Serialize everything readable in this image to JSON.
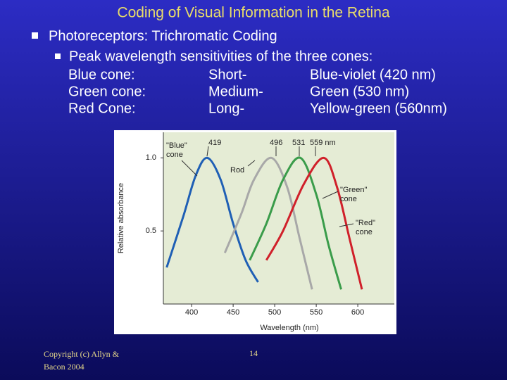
{
  "title": "Coding of Visual Information in the Retina",
  "bullets": [
    "Photoreceptors: Trichromatic Coding",
    "Peak wavelength sensitivities of the three cones:"
  ],
  "cones": {
    "rows": [
      [
        "Blue cone:",
        "Short-",
        "Blue-violet (420 nm)"
      ],
      [
        "Green cone:",
        "Medium-",
        "Green (530 nm)"
      ],
      [
        "Red Cone:",
        "Long-",
        "Yellow-green (560nm)"
      ]
    ]
  },
  "chart_data": {
    "type": "line",
    "xlabel": "Wavelength (nm)",
    "ylabel": "Relative absorbance",
    "xlim": [
      366,
      644
    ],
    "ylim": [
      0,
      1.175
    ],
    "xticks": [
      400,
      450,
      500,
      550,
      600
    ],
    "yticks": [
      {
        "value": 1,
        "label": "1.0"
      },
      0.5
    ],
    "series": [
      {
        "name": "Blue cone",
        "color": "#1f5fb5",
        "x": [
          370,
          390,
          405,
          419,
          435,
          450,
          465,
          480
        ],
        "values": [
          0.25,
          0.6,
          0.88,
          1.0,
          0.85,
          0.55,
          0.3,
          0.15
        ]
      },
      {
        "name": "Rod",
        "color": "#a8a8a8",
        "x": [
          440,
          460,
          475,
          496,
          515,
          530,
          545
        ],
        "values": [
          0.35,
          0.62,
          0.85,
          1.0,
          0.8,
          0.45,
          0.1
        ]
      },
      {
        "name": "Green cone",
        "color": "#3a9c4a",
        "x": [
          470,
          490,
          510,
          531,
          550,
          565,
          580
        ],
        "values": [
          0.3,
          0.55,
          0.85,
          1.0,
          0.75,
          0.4,
          0.1
        ]
      },
      {
        "name": "Red cone",
        "color": "#d0202a",
        "x": [
          490,
          510,
          535,
          559,
          575,
          590,
          605
        ],
        "values": [
          0.3,
          0.5,
          0.82,
          1.0,
          0.8,
          0.45,
          0.1
        ]
      }
    ],
    "annotations": [
      {
        "lines": [
          "\"Blue\"",
          "cone"
        ]
      },
      {
        "lines": [
          "Rod"
        ]
      },
      {
        "lines": [
          "\"Green\"",
          "cone"
        ]
      },
      {
        "lines": [
          "\"Red\"",
          "cone"
        ]
      },
      {
        "lines": [
          "419"
        ]
      },
      {
        "lines": [
          "496"
        ]
      },
      {
        "lines": [
          "531"
        ]
      },
      {
        "lines": [
          "559 nm"
        ]
      }
    ]
  },
  "footer": {
    "copyright": [
      "Copyright (c) Allyn &",
      "Bacon 2004"
    ],
    "page": "14"
  }
}
